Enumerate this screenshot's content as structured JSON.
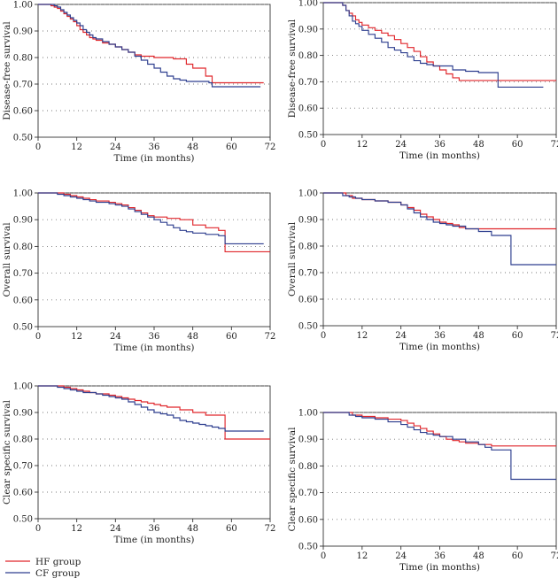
{
  "legend": {
    "items": [
      {
        "label": "HF group",
        "color": "#e0262b"
      },
      {
        "label": "CF group",
        "color": "#2e3f8f"
      }
    ]
  },
  "chart_data": [
    {
      "type": "line",
      "step": true,
      "xlabel": "Time (in months)",
      "ylabel": "Disease-free survival",
      "xlim": [
        0,
        72
      ],
      "ylim": [
        0.5,
        1.0
      ],
      "xticks": [
        "0",
        "12",
        "24",
        "36",
        "48",
        "60",
        "72"
      ],
      "yticks": [
        "0.50",
        "0.60",
        "0.70",
        "0.80",
        "0.90",
        "1.00"
      ],
      "series": [
        {
          "name": "HF group",
          "color": "#e0262b",
          "x": [
            0,
            2,
            4,
            5,
            6,
            7,
            8,
            9,
            10,
            11,
            12,
            13,
            14,
            15,
            16,
            17,
            18,
            20,
            22,
            24,
            26,
            28,
            30,
            32,
            36,
            42,
            46,
            48,
            52,
            54,
            70
          ],
          "y": [
            1.0,
            1.0,
            0.995,
            0.99,
            0.985,
            0.975,
            0.965,
            0.955,
            0.945,
            0.935,
            0.92,
            0.905,
            0.895,
            0.885,
            0.875,
            0.87,
            0.865,
            0.855,
            0.85,
            0.84,
            0.83,
            0.82,
            0.81,
            0.805,
            0.8,
            0.795,
            0.775,
            0.76,
            0.73,
            0.705,
            0.705
          ]
        },
        {
          "name": "CF group",
          "color": "#2e3f8f",
          "x": [
            0,
            3,
            5,
            6,
            7,
            8,
            9,
            10,
            11,
            12,
            13,
            14,
            15,
            16,
            17,
            18,
            20,
            22,
            24,
            26,
            28,
            30,
            32,
            34,
            36,
            38,
            40,
            42,
            44,
            46,
            50,
            53,
            54,
            69
          ],
          "y": [
            1.0,
            1.0,
            0.995,
            0.99,
            0.98,
            0.97,
            0.96,
            0.95,
            0.94,
            0.93,
            0.92,
            0.905,
            0.895,
            0.885,
            0.875,
            0.87,
            0.86,
            0.85,
            0.84,
            0.83,
            0.82,
            0.805,
            0.79,
            0.775,
            0.76,
            0.745,
            0.73,
            0.72,
            0.715,
            0.71,
            0.71,
            0.705,
            0.69,
            0.69
          ]
        }
      ]
    },
    {
      "type": "line",
      "step": true,
      "xlabel": "Time (in months)",
      "ylabel": "Disease-free survival",
      "xlim": [
        0,
        72
      ],
      "ylim": [
        0.5,
        1.0
      ],
      "xticks": [
        "0",
        "12",
        "24",
        "36",
        "48",
        "60",
        "72"
      ],
      "yticks": [
        "0.50",
        "0.60",
        "0.70",
        "0.80",
        "0.90",
        "1.00"
      ],
      "series": [
        {
          "name": "HF group",
          "color": "#e0262b",
          "x": [
            0,
            4,
            6,
            7,
            8,
            9,
            10,
            11,
            12,
            14,
            16,
            18,
            20,
            22,
            24,
            26,
            28,
            30,
            32,
            34,
            36,
            38,
            40,
            42,
            44,
            72
          ],
          "y": [
            1.0,
            1.0,
            0.99,
            0.97,
            0.96,
            0.95,
            0.935,
            0.925,
            0.915,
            0.905,
            0.895,
            0.885,
            0.875,
            0.86,
            0.845,
            0.83,
            0.815,
            0.795,
            0.775,
            0.76,
            0.745,
            0.73,
            0.715,
            0.705,
            0.705,
            0.705
          ]
        },
        {
          "name": "CF group",
          "color": "#2e3f8f",
          "x": [
            0,
            5,
            6,
            7,
            8,
            9,
            10,
            11,
            12,
            14,
            16,
            18,
            20,
            22,
            24,
            26,
            28,
            30,
            32,
            34,
            36,
            40,
            44,
            48,
            54,
            68
          ],
          "y": [
            1.0,
            1.0,
            0.99,
            0.97,
            0.95,
            0.93,
            0.92,
            0.91,
            0.895,
            0.88,
            0.865,
            0.85,
            0.83,
            0.82,
            0.81,
            0.795,
            0.78,
            0.77,
            0.765,
            0.76,
            0.76,
            0.745,
            0.74,
            0.735,
            0.68,
            0.68
          ]
        }
      ]
    },
    {
      "type": "line",
      "step": true,
      "xlabel": "Time (in months)",
      "ylabel": "Overall survival",
      "xlim": [
        0,
        72
      ],
      "ylim": [
        0.5,
        1.0
      ],
      "xticks": [
        "0",
        "12",
        "24",
        "36",
        "48",
        "60",
        "72"
      ],
      "yticks": [
        "0.50",
        "0.60",
        "0.70",
        "0.80",
        "0.90",
        "1.00"
      ],
      "series": [
        {
          "name": "HF group",
          "color": "#e0262b",
          "x": [
            0,
            6,
            8,
            10,
            12,
            14,
            16,
            18,
            20,
            22,
            24,
            26,
            28,
            30,
            32,
            34,
            36,
            40,
            44,
            48,
            52,
            56,
            58,
            72
          ],
          "y": [
            1.0,
            1.0,
            0.995,
            0.99,
            0.985,
            0.98,
            0.975,
            0.97,
            0.97,
            0.965,
            0.96,
            0.955,
            0.945,
            0.935,
            0.925,
            0.915,
            0.91,
            0.905,
            0.9,
            0.88,
            0.87,
            0.86,
            0.78,
            0.78
          ]
        },
        {
          "name": "CF group",
          "color": "#2e3f8f",
          "x": [
            0,
            4,
            6,
            8,
            10,
            12,
            14,
            16,
            18,
            20,
            22,
            24,
            26,
            28,
            30,
            32,
            34,
            36,
            38,
            40,
            42,
            44,
            46,
            48,
            52,
            56,
            58,
            70
          ],
          "y": [
            1.0,
            1.0,
            0.995,
            0.99,
            0.985,
            0.98,
            0.975,
            0.97,
            0.965,
            0.965,
            0.96,
            0.955,
            0.95,
            0.94,
            0.93,
            0.92,
            0.91,
            0.9,
            0.89,
            0.88,
            0.87,
            0.86,
            0.855,
            0.85,
            0.845,
            0.84,
            0.81,
            0.81
          ]
        }
      ]
    },
    {
      "type": "line",
      "step": true,
      "xlabel": "Time (in months)",
      "ylabel": "Overall survival",
      "xlim": [
        0,
        72
      ],
      "ylim": [
        0.5,
        1.0
      ],
      "xticks": [
        "0",
        "12",
        "24",
        "36",
        "48",
        "60",
        "72"
      ],
      "yticks": [
        "0.50",
        "0.60",
        "0.70",
        "0.80",
        "0.90",
        "1.00"
      ],
      "series": [
        {
          "name": "HF group",
          "color": "#e0262b",
          "x": [
            0,
            5,
            7,
            9,
            12,
            16,
            20,
            24,
            26,
            28,
            30,
            32,
            34,
            36,
            38,
            40,
            42,
            44,
            48,
            72
          ],
          "y": [
            1.0,
            1.0,
            0.99,
            0.98,
            0.975,
            0.97,
            0.965,
            0.955,
            0.945,
            0.935,
            0.92,
            0.91,
            0.9,
            0.89,
            0.885,
            0.88,
            0.87,
            0.865,
            0.865,
            0.865
          ]
        },
        {
          "name": "CF group",
          "color": "#2e3f8f",
          "x": [
            0,
            4,
            6,
            8,
            10,
            12,
            16,
            20,
            24,
            26,
            28,
            30,
            32,
            34,
            36,
            38,
            40,
            44,
            48,
            52,
            58,
            72
          ],
          "y": [
            1.0,
            1.0,
            0.99,
            0.985,
            0.98,
            0.975,
            0.97,
            0.965,
            0.955,
            0.94,
            0.925,
            0.91,
            0.9,
            0.89,
            0.885,
            0.88,
            0.875,
            0.865,
            0.855,
            0.84,
            0.73,
            0.73
          ]
        }
      ]
    },
    {
      "type": "line",
      "step": true,
      "xlabel": "Time (in months)",
      "ylabel": "Clear specific survival",
      "xlim": [
        0,
        72
      ],
      "ylim": [
        0.5,
        1.0
      ],
      "xticks": [
        "0",
        "12",
        "24",
        "36",
        "48",
        "60",
        "72"
      ],
      "yticks": [
        "0.50",
        "0.60",
        "0.70",
        "0.80",
        "0.90",
        "1.00"
      ],
      "series": [
        {
          "name": "HF group",
          "color": "#e0262b",
          "x": [
            0,
            6,
            8,
            10,
            12,
            14,
            16,
            18,
            20,
            22,
            24,
            26,
            28,
            30,
            32,
            34,
            36,
            38,
            40,
            44,
            48,
            52,
            58,
            72
          ],
          "y": [
            1.0,
            1.0,
            0.995,
            0.99,
            0.985,
            0.98,
            0.975,
            0.97,
            0.97,
            0.965,
            0.96,
            0.955,
            0.95,
            0.945,
            0.94,
            0.935,
            0.93,
            0.925,
            0.92,
            0.91,
            0.9,
            0.89,
            0.8,
            0.8
          ]
        },
        {
          "name": "CF group",
          "color": "#2e3f8f",
          "x": [
            0,
            4,
            6,
            8,
            10,
            12,
            14,
            16,
            18,
            20,
            22,
            24,
            26,
            28,
            30,
            32,
            34,
            36,
            38,
            40,
            42,
            44,
            46,
            48,
            50,
            52,
            54,
            56,
            58,
            70
          ],
          "y": [
            1.0,
            1.0,
            0.995,
            0.99,
            0.985,
            0.98,
            0.975,
            0.975,
            0.97,
            0.965,
            0.96,
            0.955,
            0.95,
            0.94,
            0.93,
            0.92,
            0.91,
            0.9,
            0.895,
            0.89,
            0.88,
            0.87,
            0.865,
            0.86,
            0.855,
            0.85,
            0.845,
            0.84,
            0.83,
            0.83
          ]
        }
      ]
    },
    {
      "type": "line",
      "step": true,
      "xlabel": "Time (in months)",
      "ylabel": "Clear specific survival",
      "xlim": [
        0,
        72
      ],
      "ylim": [
        0.5,
        1.0
      ],
      "xticks": [
        "0",
        "12",
        "24",
        "36",
        "48",
        "60",
        "72"
      ],
      "yticks": [
        "0.50",
        "0.60",
        "0.70",
        "0.80",
        "0.90",
        "1.00"
      ],
      "series": [
        {
          "name": "HF group",
          "color": "#e0262b",
          "x": [
            0,
            6,
            9,
            12,
            16,
            20,
            24,
            26,
            28,
            30,
            32,
            34,
            36,
            38,
            40,
            42,
            44,
            48,
            52,
            72
          ],
          "y": [
            1.0,
            1.0,
            0.99,
            0.985,
            0.98,
            0.975,
            0.97,
            0.96,
            0.95,
            0.94,
            0.93,
            0.92,
            0.91,
            0.9,
            0.895,
            0.89,
            0.885,
            0.88,
            0.875,
            0.875
          ]
        },
        {
          "name": "CF group",
          "color": "#2e3f8f",
          "x": [
            0,
            5,
            8,
            10,
            12,
            16,
            20,
            24,
            26,
            28,
            30,
            32,
            34,
            36,
            40,
            44,
            48,
            50,
            52,
            58,
            72
          ],
          "y": [
            1.0,
            1.0,
            0.99,
            0.985,
            0.98,
            0.975,
            0.965,
            0.955,
            0.945,
            0.935,
            0.925,
            0.92,
            0.915,
            0.91,
            0.9,
            0.89,
            0.88,
            0.87,
            0.86,
            0.75,
            0.75
          ]
        }
      ]
    }
  ]
}
